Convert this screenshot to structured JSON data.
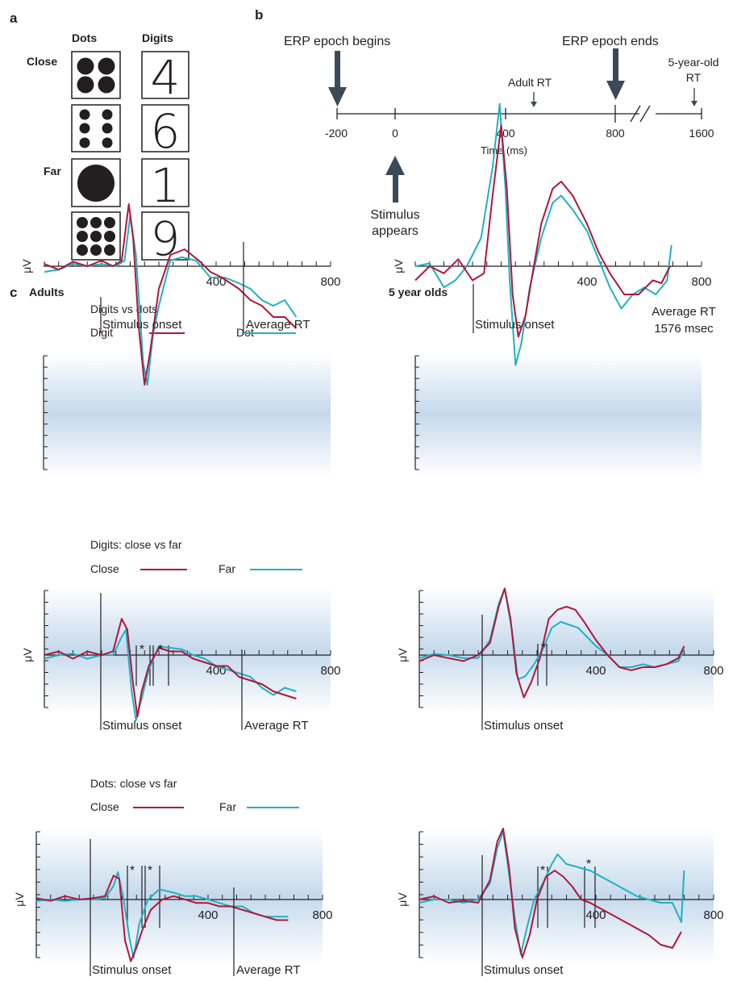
{
  "panel_a": {
    "letter": "a",
    "col_dots": "Dots",
    "col_digits": "Digits",
    "row_close": "Close",
    "row_far": "Far",
    "stimuli": [
      {
        "dots": 4,
        "digit": "4"
      },
      {
        "dots": 6,
        "digit": "6"
      },
      {
        "dots": 1,
        "digit": "1"
      },
      {
        "dots": 9,
        "digit": "9"
      }
    ]
  },
  "panel_b": {
    "letter": "b",
    "epoch_begins": "ERP epoch begins",
    "epoch_ends": "ERP epoch ends",
    "adult_rt": "Adult RT",
    "child_rt_line1": "5-year-old",
    "child_rt_line2": "RT",
    "ticks": [
      "-200",
      "0",
      "400",
      "800",
      "1600"
    ],
    "axis_label": "Time (ms)",
    "stimulus_line1": "Stimulus",
    "stimulus_line2": "appears"
  },
  "panel_c": {
    "letter": "c",
    "adults_title": "Adults",
    "children_title": "5 year olds",
    "y_label": "μV",
    "tick_400": "400",
    "tick_800": "800",
    "stimulus_onset": "Stimulus onset",
    "average_rt": "Average RT",
    "child_rt_line1": "Average RT",
    "child_rt_line2": "1576 msec",
    "asterisk": "*",
    "colors": {
      "red": "#b0173a",
      "teal": "#1fb2c0",
      "bg": "#c5d9ec"
    },
    "rows": [
      {
        "title": "Digits vs dots",
        "legend_red": "Digit",
        "legend_teal": "Dot"
      },
      {
        "title": "Digits: close vs far",
        "legend_red": "Close",
        "legend_teal": "Far"
      },
      {
        "title": "Dots: close vs far",
        "legend_red": "Close",
        "legend_teal": "Far"
      }
    ]
  }
}
